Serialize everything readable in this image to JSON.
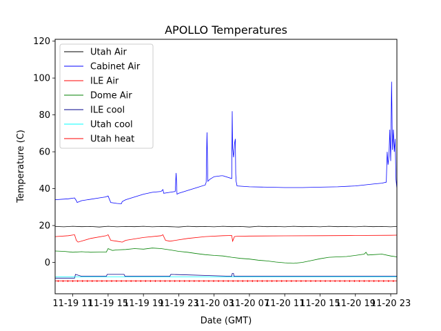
{
  "chart_data": {
    "type": "line",
    "title": "APOLLO Temperatures",
    "xlabel": "Date (GMT)",
    "ylabel": "Temperature (C)",
    "x_unit": "hours since 11-19 09:00 GMT",
    "xlim": [
      0,
      38.7
    ],
    "ylim": [
      -17,
      121
    ],
    "x_ticks": [
      {
        "x": 2.0,
        "label": "11-19 11"
      },
      {
        "x": 6.0,
        "label": "11-19 15"
      },
      {
        "x": 10.0,
        "label": "11-19 19"
      },
      {
        "x": 14.0,
        "label": "11-19 23"
      },
      {
        "x": 18.0,
        "label": "11-20 03"
      },
      {
        "x": 22.0,
        "label": "11-20 07"
      },
      {
        "x": 26.0,
        "label": "11-20 11"
      },
      {
        "x": 30.0,
        "label": "11-20 15"
      },
      {
        "x": 34.0,
        "label": "11-20 19"
      },
      {
        "x": 38.0,
        "label": "11-20 23"
      }
    ],
    "y_ticks": [
      0,
      20,
      40,
      60,
      80,
      100,
      120
    ],
    "legend_position": "top-left",
    "series": [
      {
        "name": "Utah Air",
        "color": "#000000",
        "x": [
          0,
          1,
          2,
          3,
          4,
          5,
          6,
          7,
          8,
          9,
          10,
          11,
          12,
          13,
          14,
          15,
          16,
          17,
          18,
          19,
          20,
          21,
          22,
          23,
          24,
          25,
          26,
          27,
          28,
          29,
          30,
          31,
          32,
          33,
          34,
          35,
          36,
          37,
          38,
          38.7
        ],
        "y": [
          19.5,
          19.3,
          19.6,
          19.4,
          19.5,
          19.2,
          19.6,
          19.3,
          19.5,
          19.4,
          19.6,
          19.3,
          19.5,
          19.4,
          19.2,
          19.6,
          19.4,
          19.5,
          19.3,
          19.6,
          19.4,
          19.5,
          19.2,
          19.6,
          19.4,
          19.5,
          19.3,
          19.6,
          19.4,
          19.5,
          19.3,
          19.6,
          19.4,
          19.5,
          19.3,
          19.6,
          19.4,
          19.5,
          19.3,
          19.5
        ]
      },
      {
        "name": "Cabinet Air",
        "color": "#0000ff",
        "x": [
          0,
          1.5,
          2.2,
          2.4,
          2.5,
          3,
          5,
          5.7,
          6,
          6.3,
          7,
          7.5,
          7.6,
          8,
          9,
          10,
          11,
          12,
          12.2,
          12.3,
          13,
          13.6,
          13.7,
          13.8,
          14,
          15,
          16,
          17,
          17.1,
          17.2,
          17.3,
          17.5,
          18,
          18.8,
          19,
          20,
          20.05,
          20.1,
          20.2,
          20.3,
          20.4,
          20.45,
          20.5,
          20.6,
          22,
          24,
          26,
          28,
          30,
          32,
          34,
          36,
          37,
          37.5,
          37.6,
          37.7,
          37.8,
          37.9,
          38,
          38.1,
          38.2,
          38.3,
          38.4,
          38.5,
          38.6,
          38.7
        ],
        "y": [
          34,
          34.5,
          35,
          33.5,
          32.5,
          33.5,
          35,
          35.5,
          36,
          32.5,
          32,
          31.8,
          33,
          34,
          35.5,
          37,
          38,
          38.5,
          39.5,
          37.5,
          38,
          38.5,
          48.5,
          37,
          37.5,
          39,
          40.5,
          42,
          43.5,
          70.5,
          44,
          45,
          46.5,
          47,
          47,
          45.5,
          82,
          62,
          57,
          64,
          67,
          48,
          44,
          41.5,
          41,
          40.8,
          40.6,
          40.6,
          40.8,
          41,
          41.5,
          42.5,
          43,
          43.5,
          60,
          53,
          58,
          72,
          55,
          98,
          61,
          72,
          60,
          67,
          45,
          40
        ]
      },
      {
        "name": "ILE Air",
        "color": "#ff0000",
        "x": [
          0,
          1.5,
          2.2,
          2.4,
          2.6,
          4,
          5.8,
          6,
          6.3,
          7,
          7.6,
          8,
          10,
          12,
          12.2,
          12.5,
          13,
          15,
          17,
          19,
          20,
          20.1,
          20.3,
          20.6,
          22,
          26,
          30,
          34,
          38,
          38.7
        ],
        "y": [
          14,
          14.5,
          15,
          12,
          11,
          13,
          14.5,
          15,
          12,
          11.5,
          11,
          12,
          13.5,
          14.5,
          15,
          12,
          11.5,
          13,
          14,
          14.5,
          14.6,
          11.5,
          14,
          14.2,
          14.3,
          14.4,
          14.5,
          14.6,
          14.7,
          14.8
        ]
      },
      {
        "name": "Dome Air",
        "color": "#008000",
        "x": [
          0,
          1,
          2,
          3,
          4,
          5,
          5.8,
          6,
          6.5,
          7,
          8,
          9,
          10,
          11,
          12,
          13,
          14,
          15,
          16,
          17,
          18,
          19,
          20,
          21,
          22,
          23,
          24,
          25,
          26,
          27,
          28,
          29,
          30,
          31,
          32,
          33,
          34,
          35,
          35.2,
          35.4,
          36,
          37,
          38,
          38.7
        ],
        "y": [
          6.2,
          6,
          5.5,
          5.8,
          5.5,
          5.6,
          5.6,
          7.5,
          6.5,
          6.8,
          7,
          7.5,
          7.2,
          7.8,
          7.5,
          6.8,
          6,
          5.5,
          4.8,
          4.2,
          3.8,
          3.5,
          2.8,
          2.2,
          1.8,
          1.2,
          0.8,
          0.2,
          -0.2,
          -0.5,
          0,
          1,
          2,
          2.8,
          3,
          3.2,
          3.8,
          4.5,
          5.5,
          4,
          4.2,
          4.5,
          3.5,
          3
        ]
      },
      {
        "name": "ILE cool",
        "color": "#00008b",
        "x": [
          0,
          2.2,
          2.3,
          3,
          5.8,
          5.9,
          7.8,
          7.9,
          13,
          13.1,
          20,
          20.05,
          20.2,
          20.25,
          38.7
        ],
        "y": [
          -8.5,
          -8.5,
          -6.5,
          -7.5,
          -7.5,
          -6.5,
          -6.5,
          -7.5,
          -7.5,
          -6.5,
          -7.5,
          -6,
          -6,
          -7.5,
          -7.5
        ]
      },
      {
        "name": "Utah cool",
        "color": "#00ffff",
        "x": [
          0,
          38.7
        ],
        "y": [
          -7.8,
          -7.8
        ]
      },
      {
        "name": "Utah heat",
        "color": "#ff0000",
        "x": [
          0,
          38.7
        ],
        "y": [
          -10,
          -10
        ]
      }
    ]
  }
}
